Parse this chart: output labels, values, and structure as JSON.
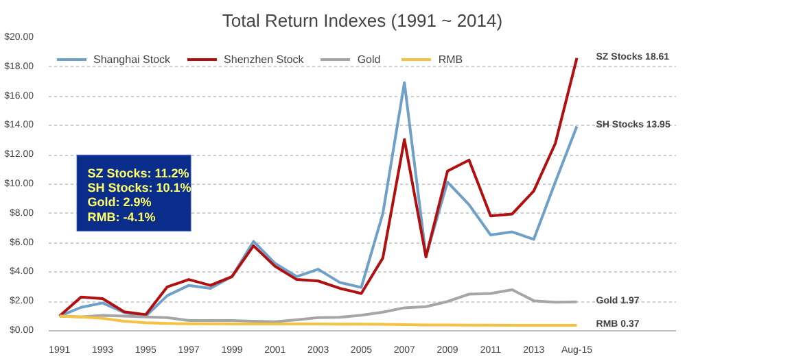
{
  "chart_data": {
    "type": "line",
    "title": "Total Return Indexes (1991 ~ 2014)",
    "categories": [
      "1991",
      null,
      "1993",
      null,
      "1995",
      null,
      "1997",
      null,
      "1999",
      null,
      "2001",
      null,
      "2003",
      null,
      "2005",
      null,
      "2007",
      null,
      "2009",
      null,
      "2011",
      null,
      "2013",
      null,
      "Aug-15"
    ],
    "series": [
      {
        "name": "Shanghai Stock",
        "color": "#6fa0c8",
        "values": [
          1.0,
          1.6,
          1.9,
          1.25,
          1.0,
          2.4,
          3.1,
          2.9,
          3.7,
          6.1,
          4.6,
          3.7,
          4.2,
          3.3,
          2.96,
          8.0,
          16.93,
          5.1,
          10.15,
          8.6,
          6.54,
          6.75,
          6.24,
          10.15,
          13.95
        ]
      },
      {
        "name": "Shenzhen Stock",
        "color": "#b01010",
        "values": [
          1.0,
          2.3,
          2.2,
          1.3,
          1.1,
          3.0,
          3.5,
          3.1,
          3.7,
          5.8,
          4.4,
          3.5,
          3.4,
          2.9,
          2.55,
          4.97,
          13.05,
          5.04,
          10.9,
          11.65,
          7.84,
          7.97,
          9.54,
          12.78,
          18.61
        ]
      },
      {
        "name": "Gold",
        "color": "#a6a6a6",
        "values": [
          1.0,
          0.95,
          1.05,
          1.0,
          0.95,
          0.9,
          0.7,
          0.7,
          0.7,
          0.65,
          0.62,
          0.75,
          0.9,
          0.92,
          1.06,
          1.27,
          1.57,
          1.65,
          2.0,
          2.5,
          2.55,
          2.8,
          2.05,
          1.95,
          1.97
        ]
      },
      {
        "name": "RMB",
        "color": "#f5c242",
        "values": [
          1.0,
          0.95,
          0.85,
          0.65,
          0.55,
          0.5,
          0.48,
          0.48,
          0.47,
          0.47,
          0.47,
          0.47,
          0.47,
          0.46,
          0.45,
          0.44,
          0.42,
          0.4,
          0.4,
          0.39,
          0.38,
          0.37,
          0.37,
          0.37,
          0.37
        ]
      }
    ],
    "ylim": [
      0,
      20
    ],
    "yticks": [
      {
        "value": 0,
        "label": "$0.00"
      },
      {
        "value": 2,
        "label": "$2.00"
      },
      {
        "value": 4,
        "label": "$4.00"
      },
      {
        "value": 6,
        "label": "$6.00"
      },
      {
        "value": 8,
        "label": "$8.00"
      },
      {
        "value": 10,
        "label": "$10.00"
      },
      {
        "value": 12,
        "label": "$12.00"
      },
      {
        "value": 14,
        "label": "$14.00"
      },
      {
        "value": 16,
        "label": "$16.00"
      },
      {
        "value": 18,
        "label": "$18.00"
      },
      {
        "value": 20,
        "label": "$20.00"
      }
    ],
    "grid": "y",
    "legend": "top left",
    "marker": "none",
    "line_style": "solid",
    "annotations": [
      "SZ Stocks: 11.2%",
      "SH Stocks: 10.1%",
      "Gold:   2.9%",
      "RMB: -4.1%",
      {
        "text": "SZ Stocks 18.61",
        "x": "Aug-15",
        "y": 18.61
      },
      {
        "text": "SH Stocks 13.95",
        "x": "Aug-15",
        "y": 13.95
      },
      {
        "text": "Gold 1.97",
        "x": "Aug-15",
        "y": 1.97
      },
      {
        "text": "RMB 0.37",
        "x": "Aug-15",
        "y": 0.37
      }
    ]
  }
}
